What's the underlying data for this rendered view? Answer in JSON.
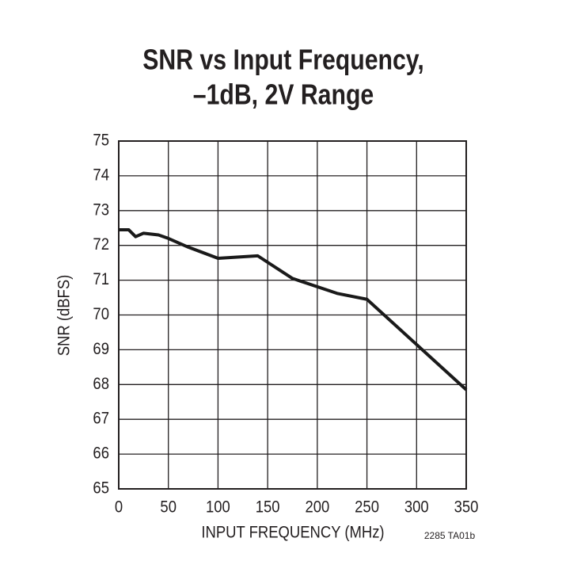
{
  "chart_data": {
    "type": "line",
    "title": [
      "SNR vs Input Frequency,",
      "–1dB, 2V Range"
    ],
    "x_label": "INPUT FREQUENCY (MHz)",
    "y_label": "SNR (dBFS)",
    "annotation": "2285 TA01b",
    "x": [
      0,
      10,
      17,
      25,
      40,
      50,
      70,
      100,
      140,
      175,
      220,
      250,
      350
    ],
    "series": [
      {
        "color": "#1a1a1a",
        "values": [
          72.45,
          72.45,
          72.25,
          72.35,
          72.3,
          72.2,
          71.95,
          71.63,
          71.7,
          71.05,
          70.62,
          70.45,
          67.85
        ]
      }
    ],
    "xlim": [
      0,
      350
    ],
    "xticks": [
      0,
      50,
      100,
      150,
      200,
      250,
      300,
      350
    ],
    "ylim": [
      65,
      75
    ],
    "yticks": [
      65,
      66,
      67,
      68,
      69,
      70,
      71,
      72,
      73,
      74,
      75
    ],
    "grid": true
  }
}
